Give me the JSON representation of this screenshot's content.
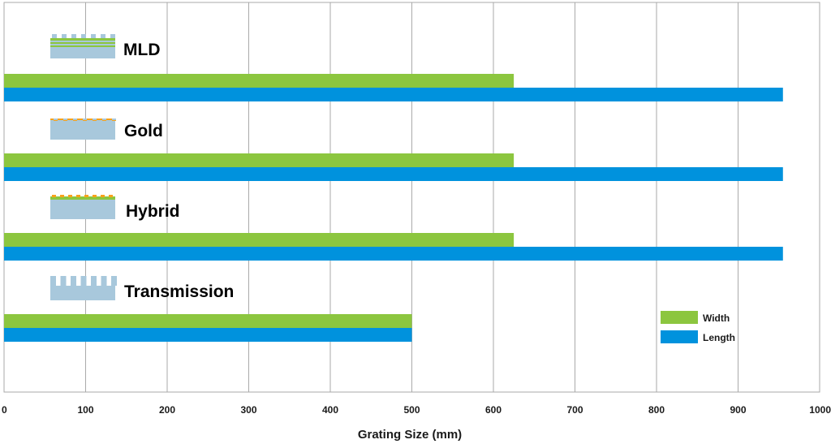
{
  "chart_data": {
    "type": "bar",
    "orientation": "horizontal",
    "categories": [
      "MLD",
      "Gold",
      "Hybrid",
      "Transmission"
    ],
    "series": [
      {
        "name": "Width",
        "color": "#8cc63f",
        "values": [
          625,
          625,
          625,
          500
        ]
      },
      {
        "name": "Length",
        "color": "#0092dd",
        "values": [
          955,
          955,
          955,
          500
        ]
      }
    ],
    "xlabel": "Grating Size (mm)",
    "ylabel": "",
    "xlim": [
      0,
      1000
    ],
    "xticks": [
      "0",
      "100",
      "200",
      "300",
      "400",
      "500",
      "600",
      "700",
      "800",
      "900",
      "1000"
    ],
    "grid": "vertical",
    "legend_position": "lower-right",
    "category_icons": [
      "mld-grating-icon",
      "gold-grating-icon",
      "hybrid-grating-icon",
      "transmission-grating-icon"
    ]
  }
}
